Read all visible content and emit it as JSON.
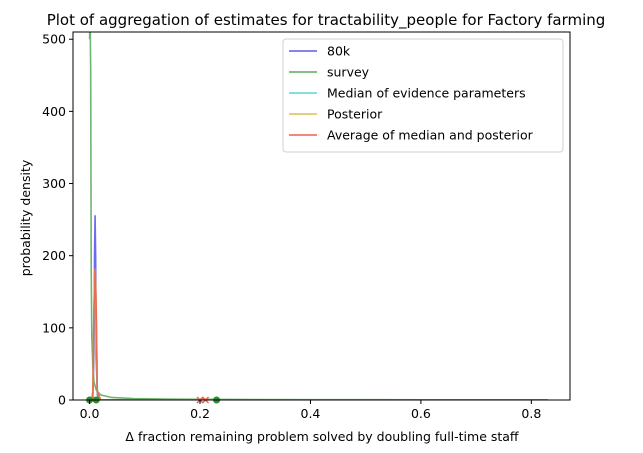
{
  "chart_data": {
    "type": "line",
    "title": "Plot of aggregation of estimates for tractability_people for Factory farming",
    "xlabel": "Δ fraction remaining problem solved by doubling full-time staff",
    "ylabel": "probability density",
    "xlim": [
      -0.03,
      0.87
    ],
    "ylim": [
      0,
      510
    ],
    "xticks": [
      "0.0",
      "0.2",
      "0.4",
      "0.6",
      "0.8"
    ],
    "yticks": [
      "0",
      "100",
      "200",
      "300",
      "400",
      "500"
    ],
    "legend_position": "top-right",
    "grid": false,
    "series": [
      {
        "name": "80k",
        "color": "#5b5bf0",
        "x": [
          0,
          0.004,
          0.006,
          0.008,
          0.009,
          0.01,
          0.011,
          0.012,
          0.014,
          0.016,
          0.02,
          0.05,
          0.2,
          0.5,
          0.83
        ],
        "y": [
          0,
          0,
          4,
          70,
          200,
          256,
          200,
          60,
          8,
          1,
          0,
          0,
          0,
          0,
          0
        ]
      },
      {
        "name": "survey",
        "color": "#5fac5f",
        "x": [
          0,
          0.001,
          0.002,
          0.003,
          0.004,
          0.006,
          0.008,
          0.012,
          0.02,
          0.04,
          0.08,
          0.15,
          0.25,
          0.4,
          0.6,
          0.83
        ],
        "y": [
          500,
          530,
          460,
          180,
          90,
          45,
          25,
          14,
          7,
          3.5,
          2,
          1.2,
          0.8,
          0.5,
          0.3,
          0.2
        ]
      },
      {
        "name": "Median of evidence parameters",
        "color": "#5fd3d3",
        "x": [
          0,
          0.004,
          0.006,
          0.008,
          0.01,
          0.012,
          0.014,
          0.02,
          0.2,
          0.83
        ],
        "y": [
          0,
          0,
          10,
          120,
          175,
          120,
          10,
          0,
          0,
          0
        ]
      },
      {
        "name": "Posterior",
        "color": "#d9c445",
        "x": [
          0,
          0.004,
          0.006,
          0.008,
          0.01,
          0.012,
          0.014,
          0.02,
          0.2,
          0.83
        ],
        "y": [
          0,
          0,
          12,
          130,
          182,
          130,
          12,
          0,
          0,
          0
        ]
      },
      {
        "name": "Average of median and posterior",
        "color": "#f06050",
        "x": [
          0,
          0.004,
          0.006,
          0.008,
          0.01,
          0.012,
          0.014,
          0.02,
          0.2,
          0.83
        ],
        "y": [
          0,
          0,
          12,
          128,
          182,
          128,
          12,
          0,
          0,
          0
        ]
      }
    ],
    "markers": [
      {
        "x": 0.0,
        "y": 0,
        "color": "#2e8b2e",
        "shape": "circle"
      },
      {
        "x": 0.012,
        "y": 0,
        "color": "#2e8b2e",
        "shape": "circle"
      },
      {
        "x": 0.23,
        "y": 0,
        "color": "#2e8b2e",
        "shape": "circle"
      },
      {
        "x": 0.2,
        "y": 0,
        "color": "#f06050",
        "shape": "x"
      },
      {
        "x": 0.21,
        "y": 0,
        "color": "#f06050",
        "shape": "x"
      }
    ]
  }
}
